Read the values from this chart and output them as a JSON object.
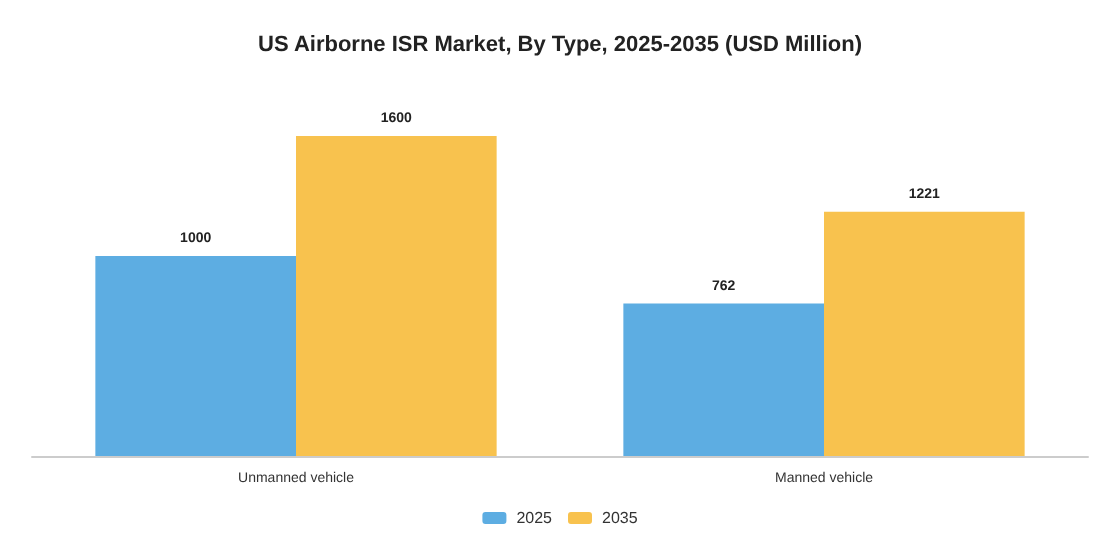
{
  "chart_data": {
    "type": "bar",
    "title": "US Airborne ISR Market, By Type, 2025-2035 (USD Million)",
    "categories": [
      "Unmanned vehicle",
      "Manned vehicle"
    ],
    "series": [
      {
        "name": "2025",
        "color": "#5dade2",
        "values": [
          1000,
          762
        ]
      },
      {
        "name": "2035",
        "color": "#f8c24e",
        "values": [
          1600,
          1221
        ]
      }
    ],
    "data_labels": true,
    "legend": "bottom"
  }
}
